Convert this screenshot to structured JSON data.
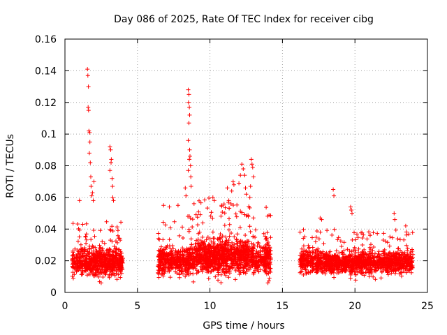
{
  "chart_data": {
    "type": "scatter",
    "title": "Day 086 of 2025, Rate Of TEC Index for receiver cibg",
    "xlabel": "GPS time / hours",
    "ylabel": "ROTI / TECUs",
    "xlim": [
      0,
      25
    ],
    "ylim": [
      0,
      0.16
    ],
    "xticks": [
      0,
      5,
      10,
      15,
      20,
      25
    ],
    "yticks": [
      0,
      0.02,
      0.04,
      0.06,
      0.08,
      0.1,
      0.12,
      0.14,
      0.16
    ],
    "xtick_labels": [
      "0",
      "5",
      "10",
      "15",
      "20",
      "25"
    ],
    "ytick_labels": [
      "0",
      "0.02",
      "0.04",
      "0.06",
      "0.08",
      "0.1",
      "0.12",
      "0.14",
      "0.16"
    ],
    "grid": true,
    "marker": "+",
    "color": "#ff0000",
    "series": [
      {
        "name": "ROTI",
        "clusters": [
          {
            "x": [
              0.5,
              4.0
            ],
            "median": 0.019,
            "spread": 0.007,
            "max_typ": 0.045,
            "density": 700
          },
          {
            "x": [
              6.4,
              8.3
            ],
            "median": 0.02,
            "spread": 0.007,
            "max_typ": 0.045,
            "density": 340
          },
          {
            "x": [
              8.3,
              9.2
            ],
            "median": 0.021,
            "spread": 0.008,
            "max_typ": 0.05,
            "density": 180
          },
          {
            "x": [
              9.2,
              13.0
            ],
            "median": 0.023,
            "spread": 0.009,
            "max_typ": 0.06,
            "density": 900
          },
          {
            "x": [
              13.0,
              13.8
            ],
            "median": 0.02,
            "spread": 0.007,
            "max_typ": 0.04,
            "density": 120
          },
          {
            "x": [
              13.8,
              14.2
            ],
            "median": 0.022,
            "spread": 0.009,
            "max_typ": 0.054,
            "density": 110
          },
          {
            "x": [
              16.2,
              17.3
            ],
            "median": 0.02,
            "spread": 0.006,
            "max_typ": 0.04,
            "density": 170
          },
          {
            "x": [
              17.3,
              24.0
            ],
            "median": 0.019,
            "spread": 0.006,
            "max_typ": 0.04,
            "density": 1200
          }
        ],
        "peaks": [
          {
            "x": 1.55,
            "y": 0.141
          },
          {
            "x": 1.58,
            "y": 0.137
          },
          {
            "x": 1.62,
            "y": 0.13
          },
          {
            "x": 1.6,
            "y": 0.117
          },
          {
            "x": 1.63,
            "y": 0.115
          },
          {
            "x": 1.65,
            "y": 0.102
          },
          {
            "x": 1.7,
            "y": 0.101
          },
          {
            "x": 1.72,
            "y": 0.095
          },
          {
            "x": 1.68,
            "y": 0.088
          },
          {
            "x": 1.75,
            "y": 0.082
          },
          {
            "x": 1.78,
            "y": 0.073
          },
          {
            "x": 1.8,
            "y": 0.067
          },
          {
            "x": 1.85,
            "y": 0.061
          },
          {
            "x": 1.0,
            "y": 0.058
          },
          {
            "x": 2.0,
            "y": 0.07
          },
          {
            "x": 1.9,
            "y": 0.063
          },
          {
            "x": 1.95,
            "y": 0.058
          },
          {
            "x": 3.1,
            "y": 0.092
          },
          {
            "x": 3.15,
            "y": 0.09
          },
          {
            "x": 3.2,
            "y": 0.084
          },
          {
            "x": 3.18,
            "y": 0.082
          },
          {
            "x": 3.1,
            "y": 0.077
          },
          {
            "x": 3.25,
            "y": 0.072
          },
          {
            "x": 3.28,
            "y": 0.067
          },
          {
            "x": 3.3,
            "y": 0.06
          },
          {
            "x": 3.35,
            "y": 0.058
          },
          {
            "x": 8.5,
            "y": 0.128
          },
          {
            "x": 8.55,
            "y": 0.125
          },
          {
            "x": 8.52,
            "y": 0.12
          },
          {
            "x": 8.58,
            "y": 0.117
          },
          {
            "x": 8.6,
            "y": 0.112
          },
          {
            "x": 8.55,
            "y": 0.107
          },
          {
            "x": 8.5,
            "y": 0.096
          },
          {
            "x": 8.6,
            "y": 0.09
          },
          {
            "x": 8.62,
            "y": 0.086
          },
          {
            "x": 8.58,
            "y": 0.084
          },
          {
            "x": 8.66,
            "y": 0.08
          },
          {
            "x": 8.5,
            "y": 0.077
          },
          {
            "x": 8.68,
            "y": 0.073
          },
          {
            "x": 8.7,
            "y": 0.067
          },
          {
            "x": 8.3,
            "y": 0.066
          },
          {
            "x": 8.35,
            "y": 0.061
          },
          {
            "x": 8.9,
            "y": 0.056
          },
          {
            "x": 7.8,
            "y": 0.055
          },
          {
            "x": 6.8,
            "y": 0.055
          },
          {
            "x": 7.2,
            "y": 0.054
          },
          {
            "x": 10.2,
            "y": 0.06
          },
          {
            "x": 10.3,
            "y": 0.058
          },
          {
            "x": 11.2,
            "y": 0.066
          },
          {
            "x": 11.5,
            "y": 0.064
          },
          {
            "x": 11.6,
            "y": 0.07
          },
          {
            "x": 11.65,
            "y": 0.068
          },
          {
            "x": 12.0,
            "y": 0.069
          },
          {
            "x": 12.1,
            "y": 0.074
          },
          {
            "x": 12.2,
            "y": 0.081
          },
          {
            "x": 12.3,
            "y": 0.078
          },
          {
            "x": 12.4,
            "y": 0.074
          },
          {
            "x": 12.45,
            "y": 0.066
          },
          {
            "x": 12.5,
            "y": 0.062
          },
          {
            "x": 12.85,
            "y": 0.084
          },
          {
            "x": 12.9,
            "y": 0.081
          },
          {
            "x": 12.95,
            "y": 0.079
          },
          {
            "x": 13.0,
            "y": 0.073
          },
          {
            "x": 12.8,
            "y": 0.067
          },
          {
            "x": 12.75,
            "y": 0.06
          },
          {
            "x": 11.3,
            "y": 0.058
          },
          {
            "x": 10.8,
            "y": 0.055
          },
          {
            "x": 18.5,
            "y": 0.065
          },
          {
            "x": 18.55,
            "y": 0.061
          },
          {
            "x": 19.7,
            "y": 0.054
          },
          {
            "x": 19.75,
            "y": 0.052
          },
          {
            "x": 19.8,
            "y": 0.05
          },
          {
            "x": 17.6,
            "y": 0.047
          },
          {
            "x": 17.7,
            "y": 0.046
          },
          {
            "x": 22.7,
            "y": 0.05
          },
          {
            "x": 22.75,
            "y": 0.046
          },
          {
            "x": 23.5,
            "y": 0.042
          },
          {
            "x": 14.0,
            "y": 0.006
          },
          {
            "x": 14.1,
            "y": 0.009
          },
          {
            "x": 2.5,
            "y": 0.006
          }
        ]
      }
    ]
  }
}
